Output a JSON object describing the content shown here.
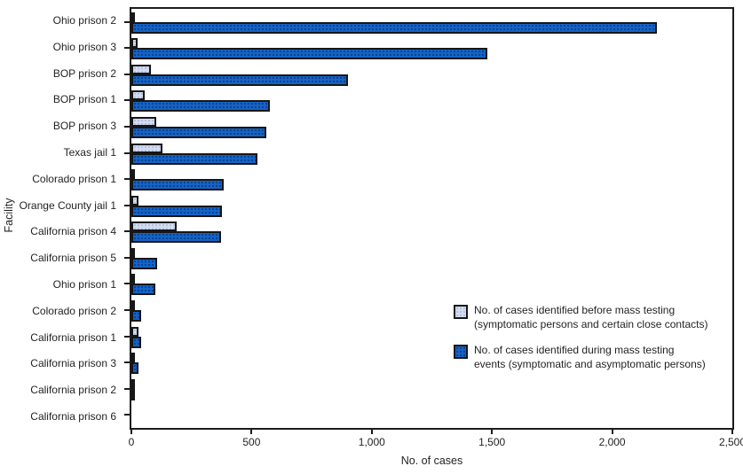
{
  "chart_data": {
    "type": "bar",
    "orientation": "horizontal",
    "title": "",
    "xlabel": "No. of cases",
    "ylabel": "Facility",
    "xlim": [
      0,
      2500
    ],
    "xticks": [
      0,
      500,
      1000,
      1500,
      2000,
      2500
    ],
    "xtick_labels": [
      "0",
      "500",
      "1,000",
      "1,500",
      "2,000",
      "2,500"
    ],
    "grid": false,
    "legend_position": "inside-right",
    "categories": [
      "Ohio prison 2",
      "Ohio prison 3",
      "BOP prison 2",
      "BOP prison 1",
      "BOP prison 3",
      "Texas jail 1",
      "Colorado prison 1",
      "Orange County jail 1",
      "California prison 4",
      "California prison 5",
      "Ohio prison 1",
      "Colorado prison 2",
      "California prison 1",
      "California prison 3",
      "California prison 2",
      "California prison 6"
    ],
    "series": [
      {
        "name": "No. of cases identified before mass testing (symptomatic persons and certain close contacts)",
        "key": "before",
        "color": "#d4dcf0",
        "values": [
          15,
          25,
          80,
          55,
          105,
          130,
          8,
          30,
          190,
          10,
          5,
          4,
          28,
          4,
          3,
          0
        ]
      },
      {
        "name": "No. of cases identified during mass testing events (symptomatic and asymptomatic persons)",
        "key": "during",
        "color": "#1563c6",
        "values": [
          2185,
          1480,
          900,
          575,
          560,
          525,
          385,
          375,
          373,
          106,
          98,
          42,
          40,
          28,
          12,
          0
        ]
      }
    ]
  },
  "axes": {
    "x_title": "No. of cases",
    "y_title": "Facility"
  },
  "legend": {
    "items": [
      {
        "key": "before",
        "line1": "No. of cases identified before mass testing",
        "line2": "(symptomatic persons and certain close contacts)"
      },
      {
        "key": "during",
        "line1": "No. of cases identified during mass testing",
        "line2": "events (symptomatic and asymptomatic persons)"
      }
    ]
  },
  "colors": {
    "before_fill": "#d4dcf0",
    "during_fill": "#1563c6",
    "bar_border": "#161616",
    "frame": "#1c1c1c",
    "text": "#231f20",
    "background": "#ffffff"
  }
}
